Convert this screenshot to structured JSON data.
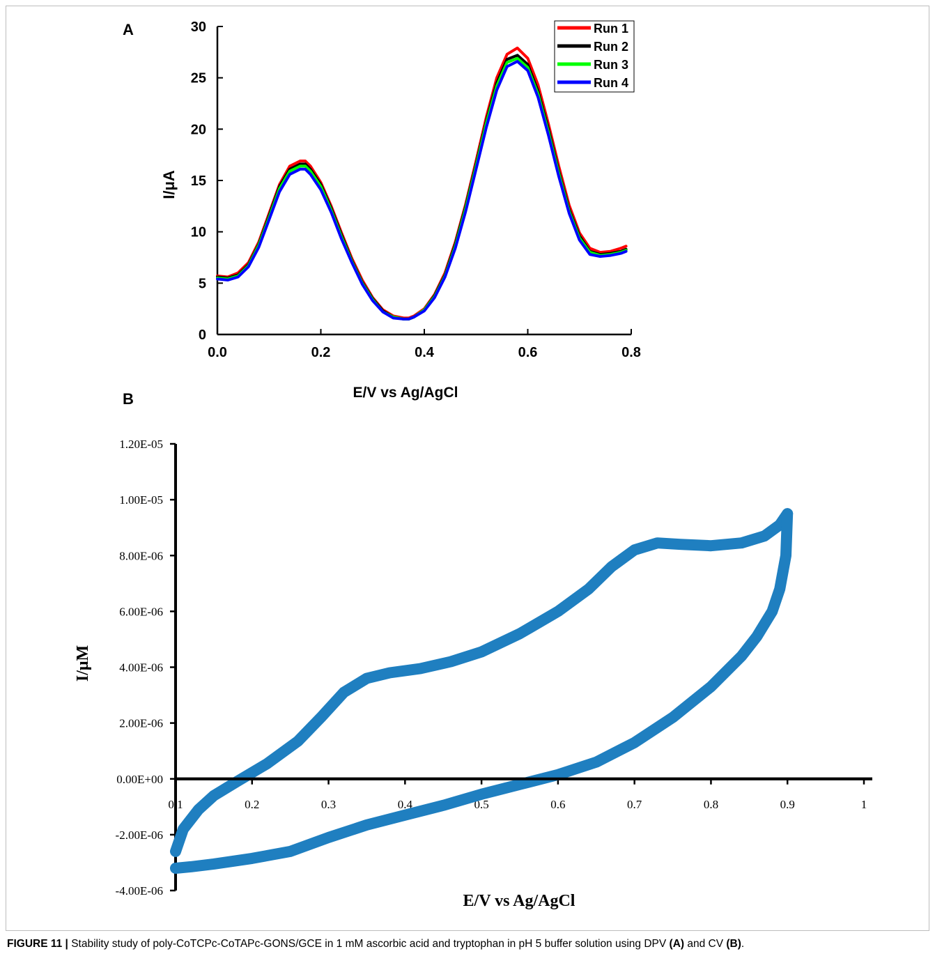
{
  "figure": {
    "caption_label": "FIGURE 11 |",
    "caption_text": " Stability study of poly-CoTCPc-CoTAPc-GONS/GCE in 1 mM ascorbic acid and tryptophan in pH 5 buffer solution using DPV ",
    "caption_ref_a": "(A)",
    "caption_and": " and CV ",
    "caption_ref_b": "(B)",
    "caption_end": "."
  },
  "chart_data": [
    {
      "panel_label": "A",
      "type": "line",
      "xlabel": "E/V vs Ag/AgCl",
      "ylabel": "I/μA",
      "xlim": [
        0,
        0.8
      ],
      "ylim": [
        0,
        30
      ],
      "xticks": [
        "0.0",
        "0.2",
        "0.4",
        "0.6",
        "0.8"
      ],
      "yticks": [
        "0",
        "5",
        "10",
        "15",
        "20",
        "25",
        "30"
      ],
      "legend_position": "top-right",
      "x": [
        0,
        0.02,
        0.04,
        0.06,
        0.08,
        0.1,
        0.12,
        0.14,
        0.16,
        0.17,
        0.18,
        0.2,
        0.22,
        0.24,
        0.26,
        0.28,
        0.3,
        0.32,
        0.34,
        0.36,
        0.37,
        0.38,
        0.4,
        0.42,
        0.44,
        0.46,
        0.48,
        0.5,
        0.52,
        0.54,
        0.56,
        0.58,
        0.6,
        0.62,
        0.64,
        0.66,
        0.68,
        0.7,
        0.72,
        0.74,
        0.76,
        0.78,
        0.79
      ],
      "series": [
        {
          "name": "Run 1",
          "color": "#ff0000",
          "values": [
            5.7,
            5.6,
            6.0,
            7.0,
            9.0,
            11.8,
            14.6,
            16.4,
            16.9,
            16.9,
            16.4,
            14.8,
            12.5,
            9.9,
            7.4,
            5.3,
            3.6,
            2.4,
            1.8,
            1.6,
            1.6,
            1.8,
            2.5,
            3.9,
            6.0,
            9.0,
            12.7,
            16.9,
            21.2,
            25.0,
            27.3,
            27.9,
            26.9,
            24.3,
            20.5,
            16.4,
            12.6,
            9.9,
            8.4,
            8.0,
            8.1,
            8.4,
            8.6
          ]
        },
        {
          "name": "Run 2",
          "color": "#000000",
          "values": [
            5.6,
            5.5,
            5.8,
            6.8,
            8.8,
            11.6,
            14.4,
            16.1,
            16.6,
            16.6,
            16.1,
            14.6,
            12.3,
            9.7,
            7.2,
            5.1,
            3.5,
            2.3,
            1.7,
            1.5,
            1.5,
            1.7,
            2.4,
            3.8,
            5.8,
            8.8,
            12.5,
            16.6,
            20.8,
            24.5,
            26.8,
            27.2,
            26.3,
            23.7,
            20.0,
            15.9,
            12.2,
            9.6,
            8.1,
            7.8,
            7.9,
            8.1,
            8.3
          ]
        },
        {
          "name": "Run 3",
          "color": "#00ff00",
          "values": [
            5.5,
            5.4,
            5.7,
            6.7,
            8.7,
            11.4,
            14.2,
            15.9,
            16.4,
            16.4,
            15.9,
            14.4,
            12.1,
            9.5,
            7.1,
            5.0,
            3.4,
            2.2,
            1.7,
            1.5,
            1.5,
            1.7,
            2.4,
            3.7,
            5.7,
            8.6,
            12.3,
            16.4,
            20.6,
            24.2,
            26.5,
            26.9,
            26.0,
            23.4,
            19.7,
            15.7,
            12.0,
            9.4,
            8.0,
            7.7,
            7.8,
            8.0,
            8.2
          ]
        },
        {
          "name": "Run 4",
          "color": "#0000ff",
          "values": [
            5.4,
            5.3,
            5.6,
            6.6,
            8.5,
            11.2,
            13.9,
            15.6,
            16.1,
            16.1,
            15.6,
            14.1,
            11.9,
            9.3,
            7.0,
            4.9,
            3.3,
            2.2,
            1.6,
            1.5,
            1.5,
            1.7,
            2.3,
            3.6,
            5.6,
            8.4,
            12.0,
            16.1,
            20.2,
            23.8,
            26.1,
            26.6,
            25.7,
            23.1,
            19.4,
            15.4,
            11.8,
            9.2,
            7.8,
            7.6,
            7.7,
            7.9,
            8.1
          ]
        }
      ]
    },
    {
      "panel_label": "B",
      "type": "line",
      "xlabel": "E/V vs Ag/AgCl",
      "ylabel": "I/μM",
      "xlim": [
        0.1,
        1
      ],
      "ylim": [
        -4e-06,
        1.2e-05
      ],
      "xticks": [
        "0.1",
        "0.2",
        "0.3",
        "0.4",
        "0.5",
        "0.6",
        "0.7",
        "0.8",
        "0.9",
        "1"
      ],
      "yticks": [
        "-4.00E-06",
        "-2.00E-06",
        "0.00E+00",
        "2.00E-06",
        "4.00E-06",
        "6.00E-06",
        "8.00E-06",
        "1.00E-05",
        "1.20E-05"
      ],
      "color": "#1f7fc0",
      "anodic": {
        "x": [
          0.1,
          0.11,
          0.13,
          0.15,
          0.18,
          0.22,
          0.26,
          0.29,
          0.32,
          0.35,
          0.38,
          0.42,
          0.46,
          0.5,
          0.55,
          0.6,
          0.64,
          0.67,
          0.7,
          0.73,
          0.76,
          0.8,
          0.84,
          0.87,
          0.89,
          0.9
        ],
        "y": [
          -2.6e-06,
          -1.8e-06,
          -1.1e-06,
          -6e-07,
          -1e-07,
          5.5e-07,
          1.35e-06,
          2.2e-06,
          3.1e-06,
          3.6e-06,
          3.8e-06,
          3.95e-06,
          4.2e-06,
          4.55e-06,
          5.2e-06,
          6e-06,
          6.8e-06,
          7.6e-06,
          8.2e-06,
          8.45e-06,
          8.4e-06,
          8.35e-06,
          8.45e-06,
          8.7e-06,
          9.1e-06,
          9.5e-06
        ]
      },
      "cathodic": {
        "x": [
          0.9,
          0.898,
          0.89,
          0.88,
          0.86,
          0.84,
          0.8,
          0.75,
          0.7,
          0.65,
          0.6,
          0.55,
          0.5,
          0.45,
          0.4,
          0.35,
          0.3,
          0.25,
          0.2,
          0.15,
          0.12,
          0.1
        ],
        "y": [
          9.5e-06,
          8e-06,
          6.8e-06,
          6e-06,
          5.1e-06,
          4.4e-06,
          3.3e-06,
          2.2e-06,
          1.3e-06,
          6e-07,
          1.5e-07,
          -2e-07,
          -5.5e-07,
          -9.5e-07,
          -1.3e-06,
          -1.65e-06,
          -2.1e-06,
          -2.6e-06,
          -2.85e-06,
          -3.05e-06,
          -3.15e-06,
          -3.2e-06
        ]
      }
    }
  ]
}
